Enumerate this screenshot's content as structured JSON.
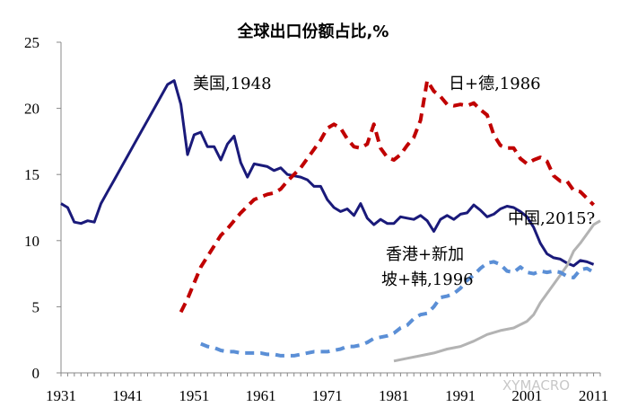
{
  "chart_data": {
    "type": "line",
    "title": "全球出口份额占比,%",
    "xlabel": "",
    "ylabel": "",
    "xlim": [
      1931,
      2012
    ],
    "ylim": [
      0,
      25
    ],
    "x_ticks": [
      "1931",
      "1941",
      "1951",
      "1961",
      "1971",
      "1981",
      "1991",
      "2001",
      "2011"
    ],
    "y_ticks": [
      "0",
      "5",
      "10",
      "15",
      "20",
      "25"
    ],
    "grid": false,
    "legend": "none",
    "annotations": [
      {
        "text": "美国,1948",
        "series": 0
      },
      {
        "text": "日+德,1986",
        "series": 1
      },
      {
        "text": "中国,2015?",
        "series": 2
      },
      {
        "text": "香港+新加",
        "series": 3
      },
      {
        "text": "坡+韩,1996",
        "series": 3
      }
    ],
    "watermark": "XYMACRO",
    "series": [
      {
        "color": "#1a1a7a",
        "style": "solid",
        "points": [
          [
            1931,
            12.8
          ],
          [
            1932,
            12.5
          ],
          [
            1933,
            11.4
          ],
          [
            1934,
            11.3
          ],
          [
            1935,
            11.5
          ],
          [
            1936,
            11.4
          ],
          [
            1937,
            12.8
          ],
          [
            1938,
            13.7
          ],
          [
            1939,
            14.6
          ],
          [
            1940,
            15.5
          ],
          [
            1941,
            16.4
          ],
          [
            1942,
            17.3
          ],
          [
            1943,
            18.2
          ],
          [
            1944,
            19.1
          ],
          [
            1945,
            20.0
          ],
          [
            1946,
            20.9
          ],
          [
            1947,
            21.8
          ],
          [
            1948,
            22.1
          ],
          [
            1949,
            20.3
          ],
          [
            1950,
            16.5
          ],
          [
            1951,
            18.0
          ],
          [
            1952,
            18.2
          ],
          [
            1953,
            17.1
          ],
          [
            1954,
            17.1
          ],
          [
            1955,
            16.1
          ],
          [
            1956,
            17.3
          ],
          [
            1957,
            17.9
          ],
          [
            1958,
            15.9
          ],
          [
            1959,
            14.8
          ],
          [
            1960,
            15.8
          ],
          [
            1961,
            15.7
          ],
          [
            1962,
            15.6
          ],
          [
            1963,
            15.3
          ],
          [
            1964,
            15.5
          ],
          [
            1965,
            15.0
          ],
          [
            1966,
            14.9
          ],
          [
            1967,
            14.8
          ],
          [
            1968,
            14.6
          ],
          [
            1969,
            14.1
          ],
          [
            1970,
            14.1
          ],
          [
            1971,
            13.1
          ],
          [
            1972,
            12.5
          ],
          [
            1973,
            12.2
          ],
          [
            1974,
            12.4
          ],
          [
            1975,
            11.9
          ],
          [
            1976,
            12.8
          ],
          [
            1977,
            11.7
          ],
          [
            1978,
            11.2
          ],
          [
            1979,
            11.6
          ],
          [
            1980,
            11.3
          ],
          [
            1981,
            11.3
          ],
          [
            1982,
            11.8
          ],
          [
            1983,
            11.7
          ],
          [
            1984,
            11.6
          ],
          [
            1985,
            11.9
          ],
          [
            1986,
            11.5
          ],
          [
            1987,
            10.7
          ],
          [
            1988,
            11.6
          ],
          [
            1989,
            11.9
          ],
          [
            1990,
            11.6
          ],
          [
            1991,
            12.0
          ],
          [
            1992,
            12.1
          ],
          [
            1993,
            12.7
          ],
          [
            1994,
            12.3
          ],
          [
            1995,
            11.8
          ],
          [
            1996,
            12.0
          ],
          [
            1997,
            12.4
          ],
          [
            1998,
            12.6
          ],
          [
            1999,
            12.5
          ],
          [
            2000,
            12.2
          ],
          [
            2001,
            11.8
          ],
          [
            2002,
            11.0
          ],
          [
            2003,
            9.8
          ],
          [
            2004,
            9.0
          ],
          [
            2005,
            8.7
          ],
          [
            2006,
            8.6
          ],
          [
            2007,
            8.3
          ],
          [
            2008,
            8.1
          ],
          [
            2009,
            8.5
          ],
          [
            2010,
            8.4
          ],
          [
            2011,
            8.2
          ]
        ]
      },
      {
        "color": "#c00000",
        "style": "dashed",
        "points": [
          [
            1949,
            4.6
          ],
          [
            1950,
            5.6
          ],
          [
            1951,
            6.8
          ],
          [
            1952,
            8.0
          ],
          [
            1953,
            8.8
          ],
          [
            1954,
            9.6
          ],
          [
            1955,
            10.4
          ],
          [
            1956,
            10.9
          ],
          [
            1957,
            11.5
          ],
          [
            1958,
            12.1
          ],
          [
            1959,
            12.6
          ],
          [
            1960,
            13.1
          ],
          [
            1961,
            13.3
          ],
          [
            1962,
            13.5
          ],
          [
            1963,
            13.6
          ],
          [
            1964,
            13.9
          ],
          [
            1965,
            14.5
          ],
          [
            1966,
            15.0
          ],
          [
            1967,
            15.5
          ],
          [
            1968,
            16.2
          ],
          [
            1969,
            16.9
          ],
          [
            1970,
            17.6
          ],
          [
            1971,
            18.5
          ],
          [
            1972,
            18.8
          ],
          [
            1973,
            18.5
          ],
          [
            1974,
            17.7
          ],
          [
            1975,
            17.1
          ],
          [
            1976,
            17.0
          ],
          [
            1977,
            17.3
          ],
          [
            1978,
            18.8
          ],
          [
            1979,
            17.0
          ],
          [
            1980,
            16.3
          ],
          [
            1981,
            16.1
          ],
          [
            1982,
            16.5
          ],
          [
            1983,
            17.2
          ],
          [
            1984,
            17.8
          ],
          [
            1985,
            19.1
          ],
          [
            1986,
            22.1
          ],
          [
            1987,
            21.3
          ],
          [
            1988,
            20.9
          ],
          [
            1989,
            20.3
          ],
          [
            1990,
            20.2
          ],
          [
            1991,
            20.3
          ],
          [
            1992,
            20.2
          ],
          [
            1993,
            20.4
          ],
          [
            1994,
            19.9
          ],
          [
            1995,
            19.5
          ],
          [
            1996,
            18.0
          ],
          [
            1997,
            17.2
          ],
          [
            1998,
            17.0
          ],
          [
            1999,
            17.0
          ],
          [
            2000,
            16.2
          ],
          [
            2001,
            15.8
          ],
          [
            2002,
            16.1
          ],
          [
            2003,
            16.3
          ],
          [
            2004,
            16.0
          ],
          [
            2005,
            14.9
          ],
          [
            2006,
            14.5
          ],
          [
            2007,
            14.5
          ],
          [
            2008,
            13.8
          ],
          [
            2009,
            13.7
          ],
          [
            2010,
            13.2
          ],
          [
            2011,
            12.7
          ]
        ]
      },
      {
        "color": "#b3b3b3",
        "style": "solid",
        "points": [
          [
            1981,
            0.9
          ],
          [
            1983,
            1.1
          ],
          [
            1985,
            1.3
          ],
          [
            1987,
            1.5
          ],
          [
            1989,
            1.8
          ],
          [
            1991,
            2.0
          ],
          [
            1993,
            2.4
          ],
          [
            1995,
            2.9
          ],
          [
            1997,
            3.2
          ],
          [
            1999,
            3.4
          ],
          [
            2001,
            3.9
          ],
          [
            2002,
            4.4
          ],
          [
            2003,
            5.3
          ],
          [
            2004,
            6.0
          ],
          [
            2005,
            6.7
          ],
          [
            2006,
            7.4
          ],
          [
            2007,
            8.1
          ],
          [
            2008,
            9.2
          ],
          [
            2009,
            9.8
          ],
          [
            2010,
            10.5
          ],
          [
            2011,
            11.2
          ],
          [
            2012,
            11.5
          ]
        ]
      },
      {
        "color": "#5b8fd6",
        "style": "dashed",
        "points": [
          [
            1952,
            2.2
          ],
          [
            1953,
            2.0
          ],
          [
            1954,
            1.9
          ],
          [
            1955,
            1.7
          ],
          [
            1956,
            1.6
          ],
          [
            1957,
            1.6
          ],
          [
            1958,
            1.5
          ],
          [
            1959,
            1.5
          ],
          [
            1960,
            1.5
          ],
          [
            1961,
            1.5
          ],
          [
            1962,
            1.4
          ],
          [
            1963,
            1.4
          ],
          [
            1964,
            1.3
          ],
          [
            1965,
            1.3
          ],
          [
            1966,
            1.3
          ],
          [
            1967,
            1.4
          ],
          [
            1968,
            1.5
          ],
          [
            1969,
            1.6
          ],
          [
            1970,
            1.6
          ],
          [
            1971,
            1.6
          ],
          [
            1972,
            1.7
          ],
          [
            1973,
            1.8
          ],
          [
            1974,
            2.0
          ],
          [
            1975,
            2.0
          ],
          [
            1976,
            2.1
          ],
          [
            1977,
            2.3
          ],
          [
            1978,
            2.6
          ],
          [
            1979,
            2.7
          ],
          [
            1980,
            2.8
          ],
          [
            1981,
            3.0
          ],
          [
            1982,
            3.4
          ],
          [
            1983,
            3.6
          ],
          [
            1984,
            4.1
          ],
          [
            1985,
            4.4
          ],
          [
            1986,
            4.5
          ],
          [
            1987,
            5.0
          ],
          [
            1988,
            5.7
          ],
          [
            1989,
            5.8
          ],
          [
            1990,
            6.0
          ],
          [
            1991,
            6.4
          ],
          [
            1992,
            7.0
          ],
          [
            1993,
            7.4
          ],
          [
            1994,
            7.9
          ],
          [
            1995,
            8.3
          ],
          [
            1996,
            8.4
          ],
          [
            1997,
            8.2
          ],
          [
            1998,
            7.7
          ],
          [
            1999,
            7.6
          ],
          [
            2000,
            8.0
          ],
          [
            2001,
            7.6
          ],
          [
            2002,
            7.5
          ],
          [
            2003,
            7.7
          ],
          [
            2004,
            7.6
          ],
          [
            2005,
            7.7
          ],
          [
            2006,
            7.6
          ],
          [
            2007,
            7.3
          ],
          [
            2008,
            7.2
          ],
          [
            2009,
            7.8
          ],
          [
            2010,
            7.9
          ],
          [
            2011,
            7.6
          ]
        ]
      }
    ]
  }
}
